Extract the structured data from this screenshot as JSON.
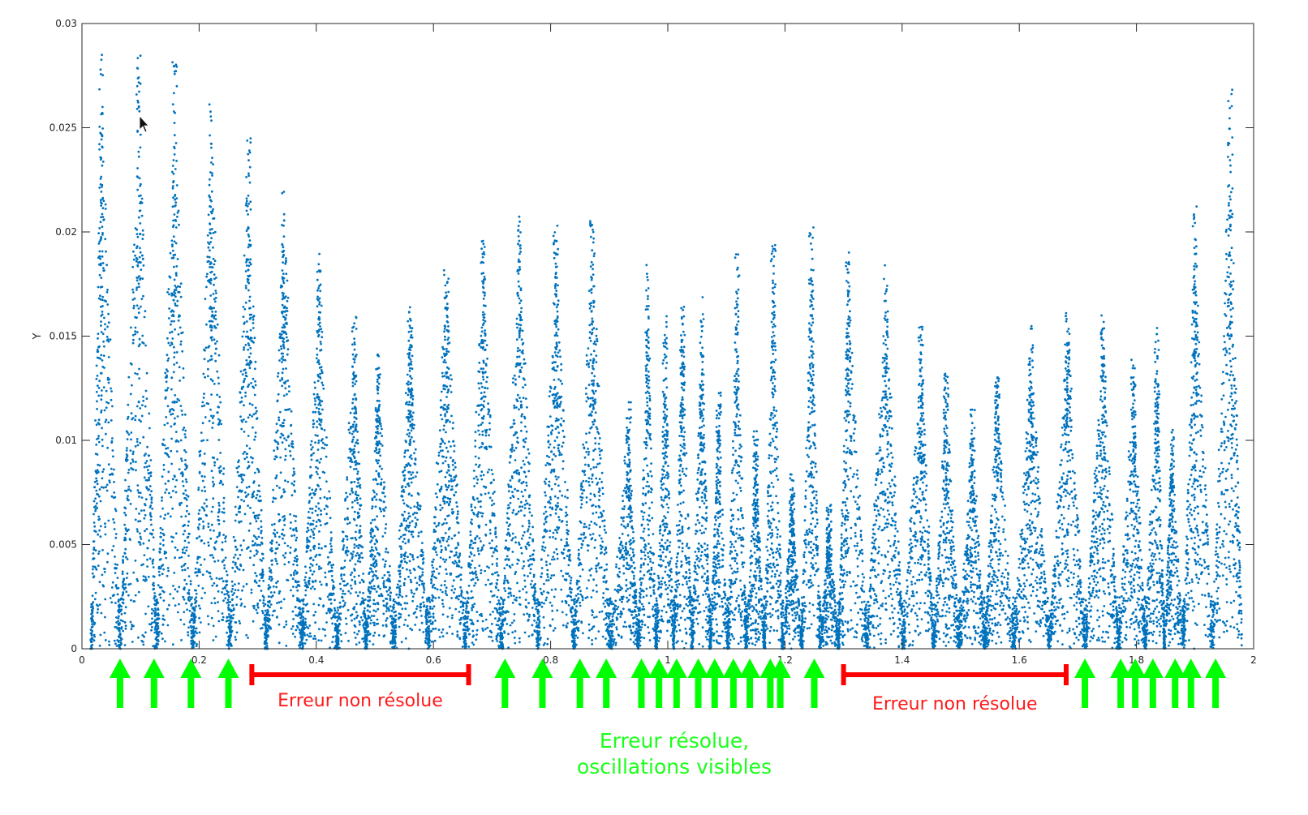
{
  "chart_data": {
    "type": "scatter",
    "title": "",
    "xlabel": "",
    "ylabel": "Y",
    "xlim": [
      0,
      2
    ],
    "ylim": [
      0,
      0.03
    ],
    "x_ticks": [
      "0",
      "0.2",
      "0.4",
      "0.6",
      "0.8",
      "1",
      "1.2",
      "1.4",
      "1.6",
      "1.8",
      "2"
    ],
    "x_tick_values": [
      0,
      0.2,
      0.4,
      0.6,
      0.8,
      1.0,
      1.2,
      1.4,
      1.6,
      1.8,
      2.0
    ],
    "y_ticks": [
      "0",
      "0.005",
      "0.01",
      "0.015",
      "0.02",
      "0.025",
      "0.03"
    ],
    "y_tick_values": [
      0,
      0.005,
      0.01,
      0.015,
      0.02,
      0.025,
      0.03
    ],
    "grid": false,
    "marker_color": "#0072bd",
    "peaks": [
      {
        "x": 0.033,
        "y": 0.029
      },
      {
        "x": 0.097,
        "y": 0.0285
      },
      {
        "x": 0.158,
        "y": 0.0285
      },
      {
        "x": 0.221,
        "y": 0.0265
      },
      {
        "x": 0.284,
        "y": 0.0245
      },
      {
        "x": 0.345,
        "y": 0.022
      },
      {
        "x": 0.405,
        "y": 0.019
      },
      {
        "x": 0.465,
        "y": 0.016
      },
      {
        "x": 0.505,
        "y": 0.0145
      },
      {
        "x": 0.56,
        "y": 0.0168
      },
      {
        "x": 0.622,
        "y": 0.019
      },
      {
        "x": 0.685,
        "y": 0.0197
      },
      {
        "x": 0.747,
        "y": 0.021
      },
      {
        "x": 0.809,
        "y": 0.0208
      },
      {
        "x": 0.871,
        "y": 0.0207
      },
      {
        "x": 0.933,
        "y": 0.012
      },
      {
        "x": 0.966,
        "y": 0.0185
      },
      {
        "x": 0.995,
        "y": 0.016
      },
      {
        "x": 1.025,
        "y": 0.0167
      },
      {
        "x": 1.058,
        "y": 0.0172
      },
      {
        "x": 1.087,
        "y": 0.0125
      },
      {
        "x": 1.118,
        "y": 0.019
      },
      {
        "x": 1.15,
        "y": 0.0105
      },
      {
        "x": 1.18,
        "y": 0.0197
      },
      {
        "x": 1.212,
        "y": 0.0085
      },
      {
        "x": 1.245,
        "y": 0.0205
      },
      {
        "x": 1.275,
        "y": 0.007
      },
      {
        "x": 1.308,
        "y": 0.0192
      },
      {
        "x": 1.372,
        "y": 0.0185
      },
      {
        "x": 1.432,
        "y": 0.016
      },
      {
        "x": 1.475,
        "y": 0.0132
      },
      {
        "x": 1.52,
        "y": 0.0116
      },
      {
        "x": 1.562,
        "y": 0.0138
      },
      {
        "x": 1.62,
        "y": 0.0155
      },
      {
        "x": 1.682,
        "y": 0.0163
      },
      {
        "x": 1.743,
        "y": 0.0163
      },
      {
        "x": 1.795,
        "y": 0.014
      },
      {
        "x": 1.835,
        "y": 0.0155
      },
      {
        "x": 1.86,
        "y": 0.0105
      },
      {
        "x": 1.9,
        "y": 0.0213
      },
      {
        "x": 1.96,
        "y": 0.0272
      }
    ]
  },
  "annotations": {
    "unresolved_label": "Erreur non résolue",
    "resolved_label_line1": "Erreur résolue,",
    "resolved_label_line2": "oscillations visibles",
    "unresolved_color": "#ff0000",
    "resolved_color": "#00ff00",
    "unresolved_spans": [
      {
        "x_start": 0.29,
        "x_end": 0.66
      },
      {
        "x_start": 1.3,
        "x_end": 1.68
      }
    ],
    "green_arrow_x": [
      0.065,
      0.123,
      0.186,
      0.25,
      0.722,
      0.786,
      0.85,
      0.895,
      0.955,
      0.985,
      1.015,
      1.052,
      1.08,
      1.112,
      1.14,
      1.175,
      1.192,
      1.25,
      1.712,
      1.773,
      1.798,
      1.828,
      1.866,
      1.893,
      1.935
    ]
  }
}
